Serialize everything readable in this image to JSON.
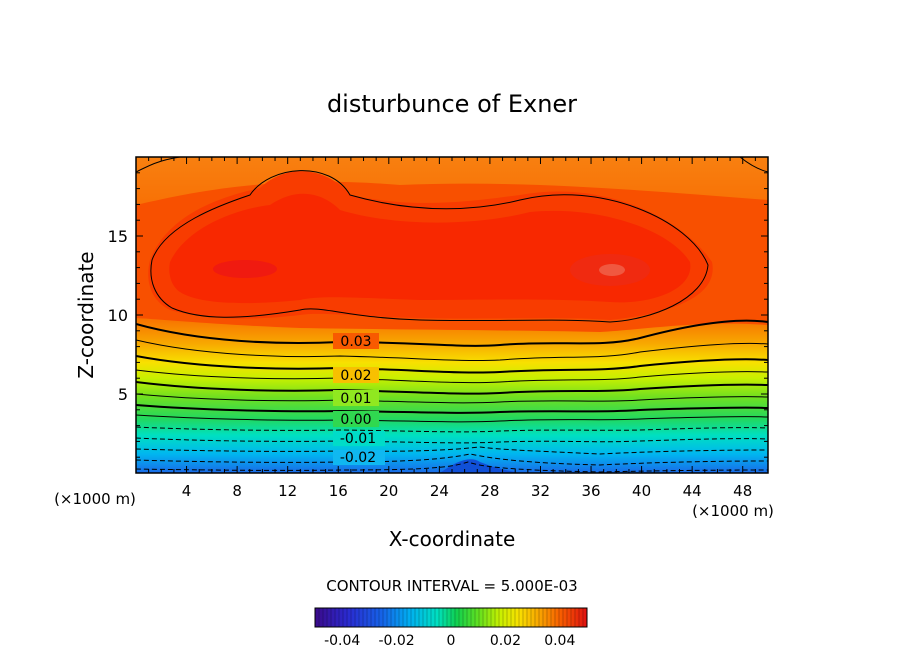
{
  "chart_data": {
    "type": "contour",
    "title": "disturbunce of Exner",
    "xlabel": "X-coordinate",
    "ylabel": "Z-coordinate",
    "x_unit_left": "(×1000 m)",
    "x_unit_right": "(×1000 m)",
    "xlim": [
      0,
      50
    ],
    "ylim": [
      0,
      20
    ],
    "xticks": [
      "4",
      "8",
      "12",
      "16",
      "20",
      "24",
      "28",
      "32",
      "36",
      "40",
      "44",
      "48"
    ],
    "yticks": [
      "5",
      "10",
      "15"
    ],
    "contour_interval_text": "CONTOUR INTERVAL = 5.000E-03",
    "contour_labels": [
      {
        "text": "0.03",
        "x": 17.5,
        "z": 8.3
      },
      {
        "text": "0.02",
        "x": 17.5,
        "z": 6.2
      },
      {
        "text": "0.01",
        "x": 17.5,
        "z": 4.7
      },
      {
        "text": "0.00",
        "x": 17.5,
        "z": 3.4
      },
      {
        "text": "-0.01",
        "x": 17.5,
        "z": 2.2
      },
      {
        "text": "-0.02",
        "x": 17.5,
        "z": 1.0
      }
    ],
    "colorbar": {
      "range": [
        -0.05,
        0.05
      ],
      "ticks": [
        "-0.04",
        "-0.02",
        "0",
        "0.02",
        "0.04"
      ],
      "palette": [
        "#3a0a8a",
        "#2a2ad0",
        "#1565e8",
        "#00b0f0",
        "#00e0c0",
        "#10d050",
        "#60e020",
        "#c8f000",
        "#f8e000",
        "#f8a000",
        "#f86000",
        "#f83000",
        "#e01010"
      ]
    },
    "field_summary": {
      "max_value": 0.045,
      "max_centers": [
        {
          "x": 10,
          "z": 12.8
        },
        {
          "x": 38,
          "z": 12.8
        }
      ],
      "min_value": -0.028,
      "min_location": {
        "x": 26.5,
        "z": 0.2
      },
      "zero_line_z": 3.4,
      "solid_contours": "positive values",
      "dashed_contours": "negative values"
    }
  }
}
